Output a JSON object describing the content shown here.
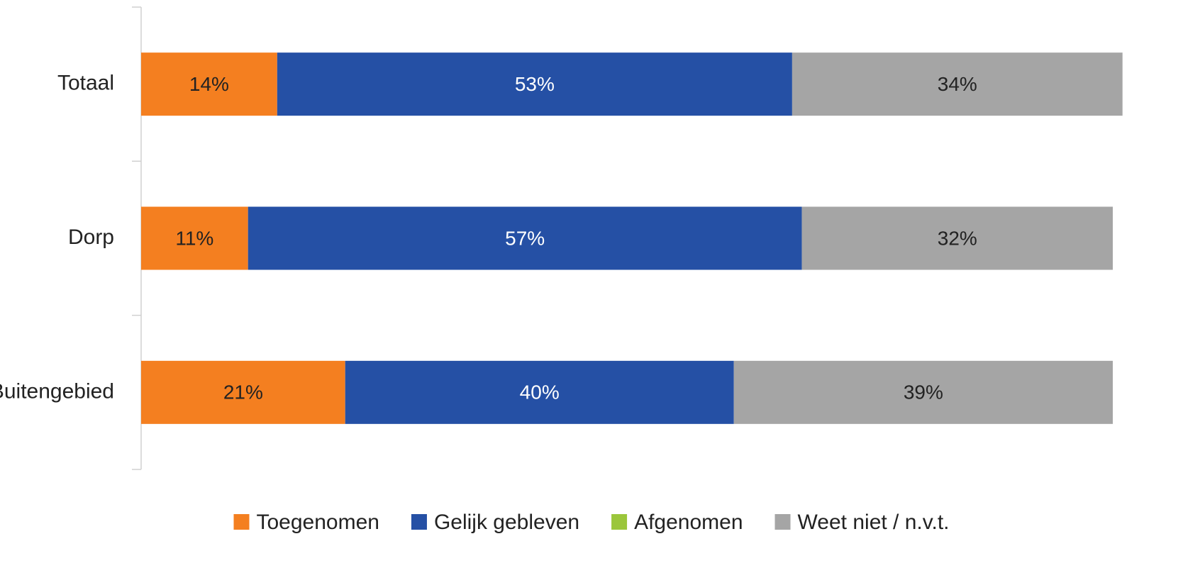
{
  "chart_data": {
    "type": "stacked-bar-horizontal",
    "categories": [
      "Totaal",
      "Dorp",
      "Buitengebied"
    ],
    "series": [
      {
        "name": "Toegenomen",
        "color": "#f47f20",
        "values": [
          14,
          11,
          21
        ],
        "value_labels": [
          "14%",
          "11%",
          "21%"
        ],
        "label_color": "#222222"
      },
      {
        "name": "Gelijk gebleven",
        "color": "#2550a5",
        "values": [
          53,
          57,
          40
        ],
        "value_labels": [
          "53%",
          "57%",
          "40%"
        ],
        "label_color": "#ffffff"
      },
      {
        "name": "Afgenomen",
        "color": "#9bc63b",
        "values": [
          null,
          null,
          null
        ]
      },
      {
        "name": "Weet niet / n.v.t.",
        "color": "#a5a5a5",
        "values": [
          34,
          32,
          39
        ],
        "value_labels": [
          "34%",
          "32%",
          "39%"
        ],
        "label_color": "#222222"
      }
    ],
    "legend": "bottom"
  }
}
